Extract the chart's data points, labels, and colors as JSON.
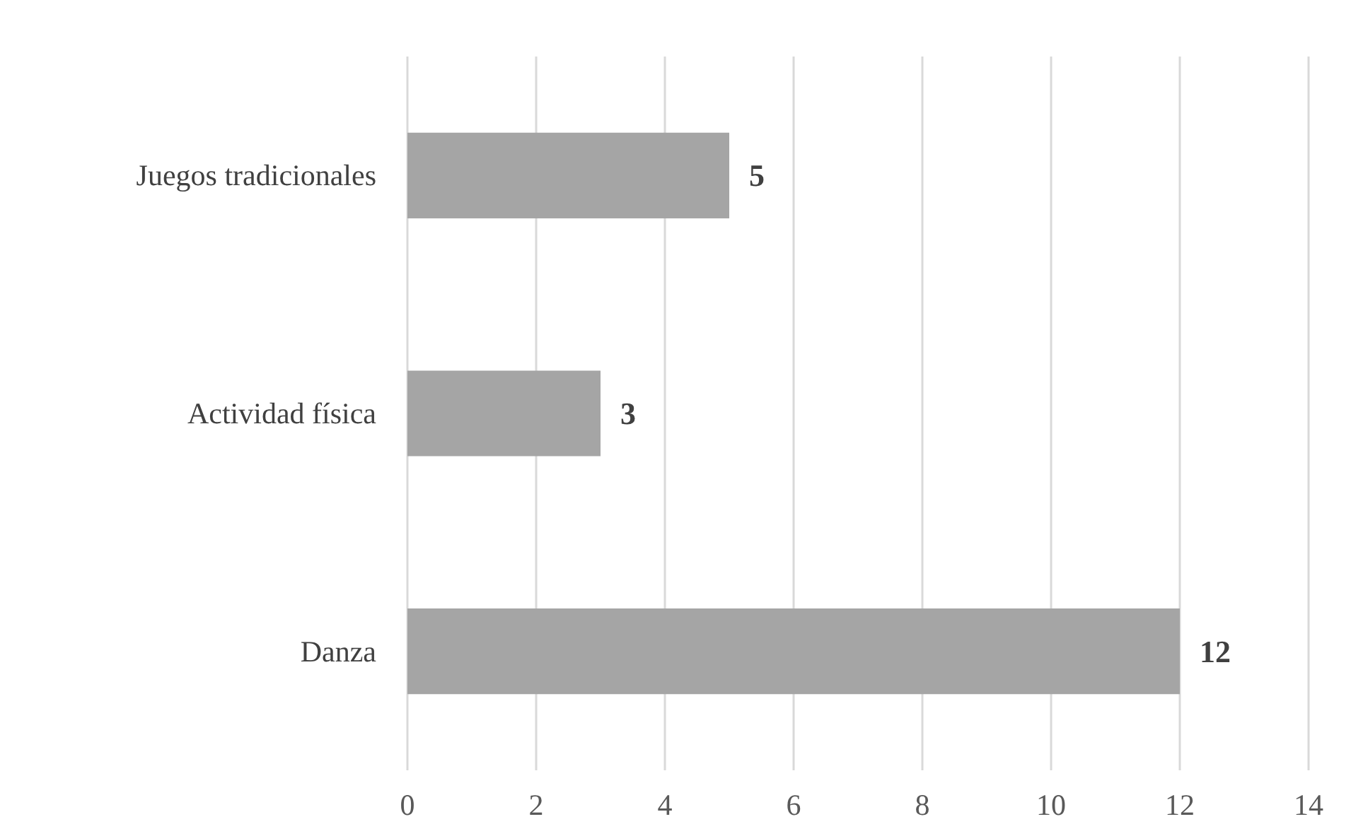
{
  "chart_data": {
    "type": "bar",
    "orientation": "horizontal",
    "categories": [
      "Juegos tradicionales",
      "Actividad física",
      "Danza"
    ],
    "values": [
      5,
      3,
      12
    ],
    "color": "#a5a5a5",
    "xlim": [
      0,
      14
    ],
    "xticks": [
      0,
      2,
      4,
      6,
      8,
      10,
      12,
      14
    ],
    "grid": "x",
    "data_labels": true
  }
}
